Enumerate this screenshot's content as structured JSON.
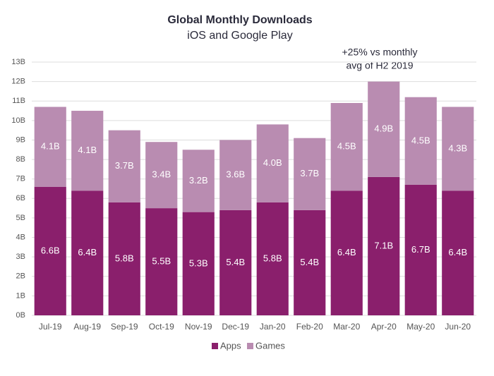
{
  "chart_data": {
    "type": "stacked-bar",
    "title": "Global Monthly Downloads",
    "subtitle": "iOS and Google Play",
    "annotation": [
      "+25% vs monthly",
      "avg of H2 2019"
    ],
    "categories": [
      "Jul-19",
      "Aug-19",
      "Sep-19",
      "Oct-19",
      "Nov-19",
      "Dec-19",
      "Jan-20",
      "Feb-20",
      "Mar-20",
      "Apr-20",
      "May-20",
      "Jun-20"
    ],
    "series": [
      {
        "name": "Apps",
        "color": "#8a1f6c",
        "values": [
          6.6,
          6.4,
          5.8,
          5.5,
          5.3,
          5.4,
          5.8,
          5.4,
          6.4,
          7.1,
          6.7,
          6.4
        ],
        "value_labels": [
          "6.6B",
          "6.4B",
          "5.8B",
          "5.5B",
          "5.3B",
          "5.4B",
          "5.8B",
          "5.4B",
          "6.4B",
          "7.1B",
          "6.7B",
          "6.4B"
        ]
      },
      {
        "name": "Games",
        "color": "#b98cb1",
        "values": [
          4.1,
          4.1,
          3.7,
          3.4,
          3.2,
          3.6,
          4.0,
          3.7,
          4.5,
          4.9,
          4.5,
          4.3
        ],
        "value_labels": [
          "4.1B",
          "4.1B",
          "3.7B",
          "3.4B",
          "3.2B",
          "3.6B",
          "4.0B",
          "3.7B",
          "4.5B",
          "4.9B",
          "4.5B",
          "4.3B"
        ]
      }
    ],
    "ylim": [
      0,
      13
    ],
    "yticks": [
      {
        "value": 0,
        "label": "0B"
      },
      {
        "value": 1,
        "label": "1B"
      },
      {
        "value": 2,
        "label": "2B"
      },
      {
        "value": 3,
        "label": "3B"
      },
      {
        "value": 4,
        "label": "4B"
      },
      {
        "value": 5,
        "label": "5B"
      },
      {
        "value": 6,
        "label": "6B"
      },
      {
        "value": 7,
        "label": "7B"
      },
      {
        "value": 8,
        "label": "8B"
      },
      {
        "value": 9,
        "label": "9B"
      },
      {
        "value": 10,
        "label": "10B"
      },
      {
        "value": 11,
        "label": "11B"
      },
      {
        "value": 12,
        "label": "12B"
      },
      {
        "value": 13,
        "label": "13B"
      }
    ],
    "grid": true,
    "legend": "bottom"
  }
}
